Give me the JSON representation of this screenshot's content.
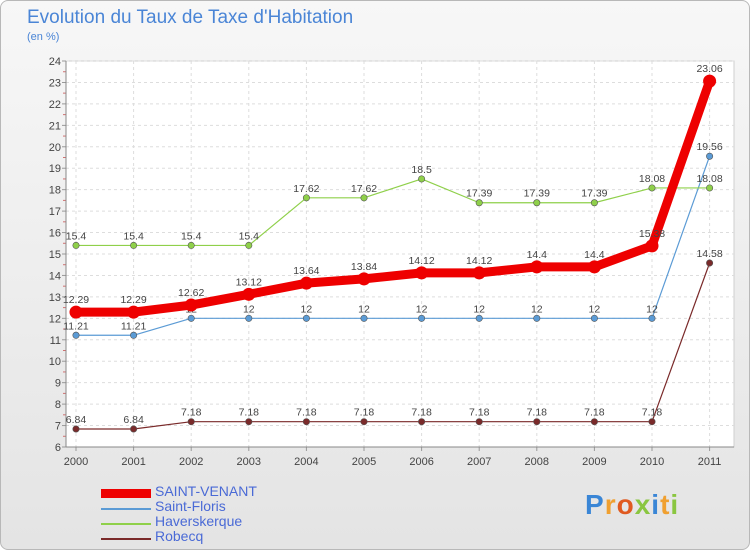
{
  "header": {
    "title": "Evolution du Taux de Taxe d'Habitation",
    "subtitle": "(en %)"
  },
  "logo": {
    "text": "Proxiti",
    "letter_colors": [
      "#3a86d6",
      "#f0a030",
      "#e05a20",
      "#8ac640",
      "#3a86d6",
      "#f0a030",
      "#8ac640"
    ]
  },
  "chart_data": {
    "type": "line",
    "title": "Evolution du Taux de Taxe d'Habitation",
    "subtitle": "(en %)",
    "x": [
      2000,
      2001,
      2002,
      2003,
      2004,
      2005,
      2006,
      2007,
      2008,
      2009,
      2010,
      2011
    ],
    "ylim": [
      6,
      24
    ],
    "yticks": [
      6,
      7,
      8,
      9,
      10,
      11,
      12,
      13,
      14,
      15,
      16,
      17,
      18,
      19,
      20,
      21,
      22,
      23,
      24
    ],
    "grid": true,
    "legend_position": "bottom-left",
    "series": [
      {
        "name": "SAINT-VENANT",
        "color": "#ee0000",
        "emphasis": true,
        "values": [
          12.29,
          12.29,
          12.62,
          13.12,
          13.64,
          13.84,
          14.12,
          14.12,
          14.4,
          14.4,
          15.38,
          23.06
        ],
        "labels": [
          "12.29",
          "12.29",
          "12.62",
          "13.12",
          "13.64",
          "13.84",
          "14.12",
          "14.12",
          "14.4",
          "14.4",
          "15.38",
          "23.06"
        ]
      },
      {
        "name": "Saint-Floris",
        "color": "#5b9bd5",
        "values": [
          11.21,
          11.21,
          12,
          12,
          12,
          12,
          12,
          12,
          12,
          12,
          12,
          19.56
        ],
        "labels": [
          "11.21",
          "11.21",
          "12",
          "12",
          "12",
          "12",
          "12",
          "12",
          "12",
          "12",
          "12",
          "19.56"
        ]
      },
      {
        "name": "Haverskerque",
        "color": "#8fd04a",
        "values": [
          15.4,
          15.4,
          15.4,
          15.4,
          17.62,
          17.62,
          18.5,
          17.39,
          17.39,
          17.39,
          18.08,
          18.08
        ],
        "labels": [
          "15.4",
          "15.4",
          "15.4",
          "15.4",
          "17.62",
          "17.62",
          "18.5",
          "17.39",
          "17.39",
          "17.39",
          "18.08",
          "18.08"
        ]
      },
      {
        "name": "Robecq",
        "color": "#7a2a2a",
        "values": [
          6.84,
          6.84,
          7.18,
          7.18,
          7.18,
          7.18,
          7.18,
          7.18,
          7.18,
          7.18,
          7.18,
          14.58
        ],
        "labels": [
          "6.84",
          "6.84",
          "7.18",
          "7.18",
          "7.18",
          "7.18",
          "7.18",
          "7.18",
          "7.18",
          "7.18",
          "7.18",
          "14.58"
        ]
      }
    ]
  }
}
